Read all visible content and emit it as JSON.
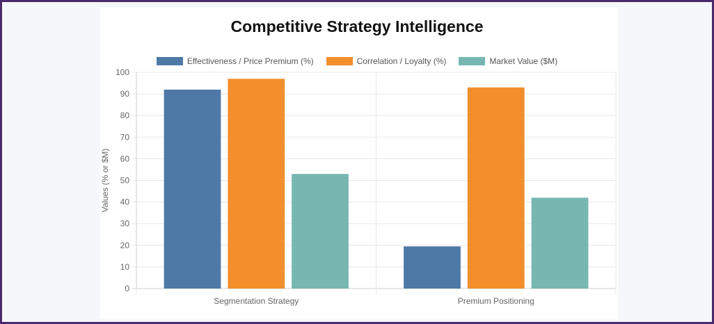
{
  "chart_data": {
    "type": "bar",
    "title": "Competitive Strategy Intelligence",
    "ylabel": "Values (% or $M)",
    "xlabel": "",
    "ylim": [
      0,
      100
    ],
    "ytick_step": 10,
    "grid": true,
    "legend_position": "top",
    "categories": [
      "Segmentation Strategy",
      "Premium Positioning"
    ],
    "series": [
      {
        "name": "Effectiveness / Price Premium (%)",
        "color": "#4e79a7",
        "values": [
          92,
          19.5
        ]
      },
      {
        "name": "Correlation / Loyalty (%)",
        "color": "#f28e2b",
        "values": [
          97,
          93
        ]
      },
      {
        "name": "Market Value ($M)",
        "color": "#76b7b2",
        "values": [
          53,
          42
        ]
      }
    ]
  }
}
